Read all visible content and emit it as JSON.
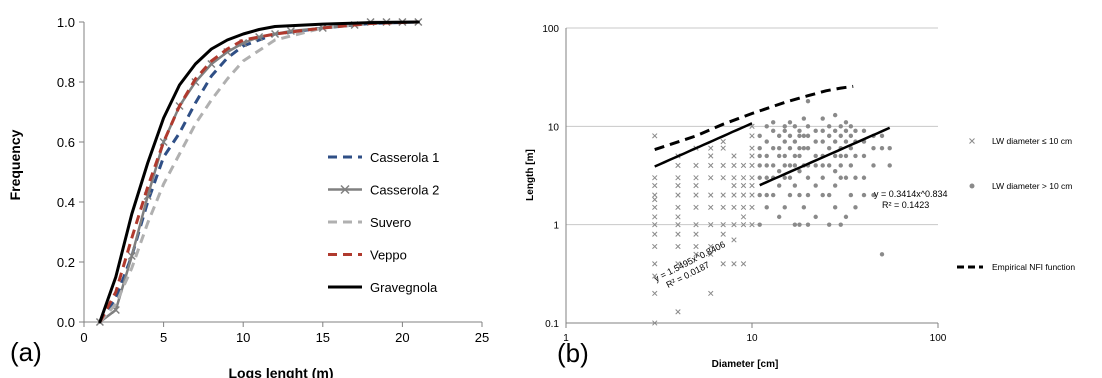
{
  "chart_data": [
    {
      "panel_label": "(a)",
      "type": "line",
      "xlabel": "Logs lenght (m)",
      "ylabel": "Frequency",
      "xlim": [
        0,
        25
      ],
      "ylim": [
        0,
        1.0
      ],
      "x_ticks": [
        "0",
        "5",
        "10",
        "15",
        "20",
        "25"
      ],
      "y_ticks": [
        "0.0",
        "0.2",
        "0.4",
        "0.6",
        "0.8",
        "1.0"
      ],
      "grid": false,
      "legend_position": "center-right",
      "series": [
        {
          "name": "Casserola 1",
          "color": "#2f4f86",
          "dash": "dashed",
          "x": [
            1,
            2,
            3,
            4,
            5,
            6,
            7,
            8,
            9,
            10,
            12,
            15,
            18,
            21
          ],
          "y": [
            0,
            0.08,
            0.22,
            0.4,
            0.55,
            0.63,
            0.73,
            0.82,
            0.88,
            0.92,
            0.96,
            0.98,
            0.995,
            1.0
          ]
        },
        {
          "name": "Casserola 2",
          "color": "#808080",
          "dash": "solid-x",
          "x": [
            1,
            2,
            3,
            4,
            5,
            6,
            7,
            8,
            9,
            10,
            11,
            12,
            13,
            15,
            17,
            18,
            19,
            20,
            21
          ],
          "y": [
            0,
            0.04,
            0.22,
            0.42,
            0.6,
            0.72,
            0.8,
            0.86,
            0.9,
            0.93,
            0.95,
            0.96,
            0.97,
            0.98,
            0.99,
            1.0,
            1.0,
            1.0,
            1.0
          ]
        },
        {
          "name": "Suvero",
          "color": "#b0b0b0",
          "dash": "dashed",
          "x": [
            1,
            2,
            3,
            4,
            5,
            6,
            7,
            8,
            9,
            10,
            12,
            15,
            18,
            21
          ],
          "y": [
            0,
            0.06,
            0.18,
            0.33,
            0.46,
            0.56,
            0.66,
            0.74,
            0.81,
            0.87,
            0.94,
            0.98,
            0.995,
            1.0
          ]
        },
        {
          "name": "Veppo",
          "color": "#b03a2e",
          "dash": "dashed",
          "x": [
            1,
            2,
            3,
            4,
            5,
            6,
            7,
            8,
            9,
            10,
            12,
            15,
            18,
            21
          ],
          "y": [
            0,
            0.1,
            0.28,
            0.45,
            0.6,
            0.72,
            0.81,
            0.87,
            0.91,
            0.94,
            0.96,
            0.98,
            0.995,
            1.0
          ]
        },
        {
          "name": "Gravegnola",
          "color": "#000000",
          "dash": "solid",
          "x": [
            1,
            2,
            3,
            4,
            5,
            6,
            7,
            8,
            9,
            10,
            11,
            12,
            15,
            18,
            21
          ],
          "y": [
            0,
            0.15,
            0.36,
            0.53,
            0.68,
            0.79,
            0.86,
            0.91,
            0.94,
            0.96,
            0.975,
            0.985,
            0.993,
            0.998,
            1.0
          ]
        }
      ]
    },
    {
      "panel_label": "(b)",
      "type": "scatter",
      "xlabel": "Diameter [cm]",
      "ylabel": "Length [m]",
      "x_scale": "log",
      "y_scale": "log",
      "xlim": [
        1,
        100
      ],
      "ylim": [
        0.1,
        100
      ],
      "x_ticks": [
        "1",
        "10",
        "100"
      ],
      "y_ticks": [
        "0.1",
        "1",
        "10",
        "100"
      ],
      "grid": "horizontal",
      "legend_position": "right",
      "series": [
        {
          "name": "LW diameter ≤ 10 cm",
          "marker": "x",
          "color": "#8a8a8a",
          "x": [
            3,
            3,
            3,
            3,
            3,
            3,
            3,
            3,
            3,
            3,
            3,
            3,
            3,
            3,
            4,
            4,
            4,
            4,
            4,
            4,
            4,
            4,
            4,
            4,
            4,
            4,
            5,
            5,
            5,
            5,
            5,
            5,
            5,
            5,
            5,
            5,
            6,
            6,
            6,
            6,
            6,
            6,
            6,
            6,
            6,
            6,
            7,
            7,
            7,
            7,
            7,
            7,
            7,
            7,
            7,
            8,
            8,
            8,
            8,
            8,
            8,
            8,
            8,
            8,
            9,
            9,
            9,
            9,
            9,
            9,
            9,
            9,
            10,
            10,
            10,
            10,
            10,
            10,
            10,
            10,
            10,
            10
          ],
          "y": [
            8,
            3,
            2.5,
            2,
            1.8,
            1.5,
            1.2,
            1,
            0.8,
            0.6,
            0.4,
            0.3,
            0.2,
            0.1,
            5,
            4,
            3,
            2.5,
            2,
            1.5,
            1.2,
            1,
            0.8,
            0.6,
            0.4,
            0.13,
            6,
            4,
            3,
            2.5,
            2,
            1.5,
            1,
            0.8,
            0.6,
            0.5,
            6,
            5,
            4,
            3,
            2,
            1.5,
            1,
            0.6,
            0.5,
            0.2,
            7,
            6,
            4,
            3,
            2,
            1.5,
            1,
            0.8,
            0.4,
            5,
            4,
            3,
            2.5,
            2,
            1.5,
            1,
            0.7,
            0.4,
            4,
            3,
            2.5,
            2,
            1.5,
            1.2,
            1,
            0.4,
            10,
            8,
            6,
            5,
            4,
            3,
            2.5,
            2,
            1.5,
            1
          ]
        },
        {
          "name": "LW diameter > 10 cm",
          "marker": "dot",
          "color": "#8a8a8a",
          "x": [
            11,
            11,
            11,
            11,
            11,
            11,
            11,
            12,
            12,
            12,
            12,
            12,
            12,
            12,
            13,
            13,
            13,
            13,
            13,
            13,
            14,
            14,
            14,
            14,
            14,
            14,
            15,
            15,
            15,
            15,
            15,
            15,
            15,
            16,
            16,
            16,
            16,
            16,
            16,
            17,
            17,
            17,
            17,
            17,
            17,
            18,
            18,
            18,
            18,
            18,
            18,
            18,
            19,
            19,
            19,
            19,
            19,
            20,
            20,
            20,
            20,
            20,
            20,
            20,
            20,
            22,
            22,
            22,
            22,
            22,
            22,
            24,
            24,
            24,
            24,
            24,
            24,
            24,
            26,
            26,
            26,
            26,
            26,
            26,
            28,
            28,
            28,
            28,
            28,
            28,
            28,
            30,
            30,
            30,
            30,
            30,
            30,
            30,
            32,
            32,
            32,
            32,
            32,
            32,
            34,
            34,
            34,
            34,
            34,
            36,
            36,
            36,
            36,
            36,
            40,
            40,
            40,
            40,
            40,
            45,
            45,
            45,
            45,
            50,
            50,
            50,
            55,
            55
          ],
          "y": [
            8,
            6,
            5,
            4,
            3,
            2,
            1,
            10,
            7,
            5,
            4,
            3,
            2,
            1.5,
            11,
            9,
            6,
            4,
            3,
            2,
            8,
            6,
            5,
            3.5,
            2.5,
            1.2,
            10,
            9,
            7,
            5,
            4,
            3,
            1.5,
            11,
            8,
            6,
            4,
            3,
            2,
            10,
            7,
            5,
            4,
            2.5,
            1,
            9,
            8,
            6,
            5,
            3.5,
            2,
            1,
            12,
            8,
            6,
            4,
            1.5,
            18,
            10,
            8,
            6,
            4,
            3,
            2,
            1,
            9,
            7,
            5,
            4,
            2.5,
            1.2,
            12,
            9,
            7,
            5,
            4,
            3,
            2,
            10,
            8,
            6,
            4,
            2,
            1,
            13,
            9,
            7,
            5,
            3.5,
            2.5,
            1.5,
            10,
            8,
            6,
            5,
            4,
            3,
            1,
            11,
            9,
            7,
            5,
            3,
            1.2,
            10,
            8,
            6,
            4,
            2,
            9,
            7,
            5,
            3,
            1.5,
            9,
            7,
            5,
            3,
            2,
            8,
            6,
            4,
            2,
            8,
            6,
            0.5,
            6,
            4
          ]
        }
      ],
      "fits": [
        {
          "equation": "y = 1.5495x^0.8406",
          "r2": "R² = 0.0187",
          "coef": 1.5495,
          "exp": 0.8406,
          "x_range": [
            3,
            10
          ]
        },
        {
          "equation": "y = 0.3414x^0.834",
          "r2": "R² = 0.1423",
          "coef": 0.3414,
          "exp": 0.834,
          "x_range": [
            11,
            55
          ]
        }
      ],
      "nfi_function": {
        "name": "Empirical NFI function",
        "x": [
          3,
          5,
          7,
          10,
          15,
          20,
          25,
          30,
          35
        ],
        "y": [
          5.8,
          8,
          10.5,
          13.5,
          17.5,
          20.5,
          23,
          24.5,
          25.5
        ]
      }
    }
  ]
}
